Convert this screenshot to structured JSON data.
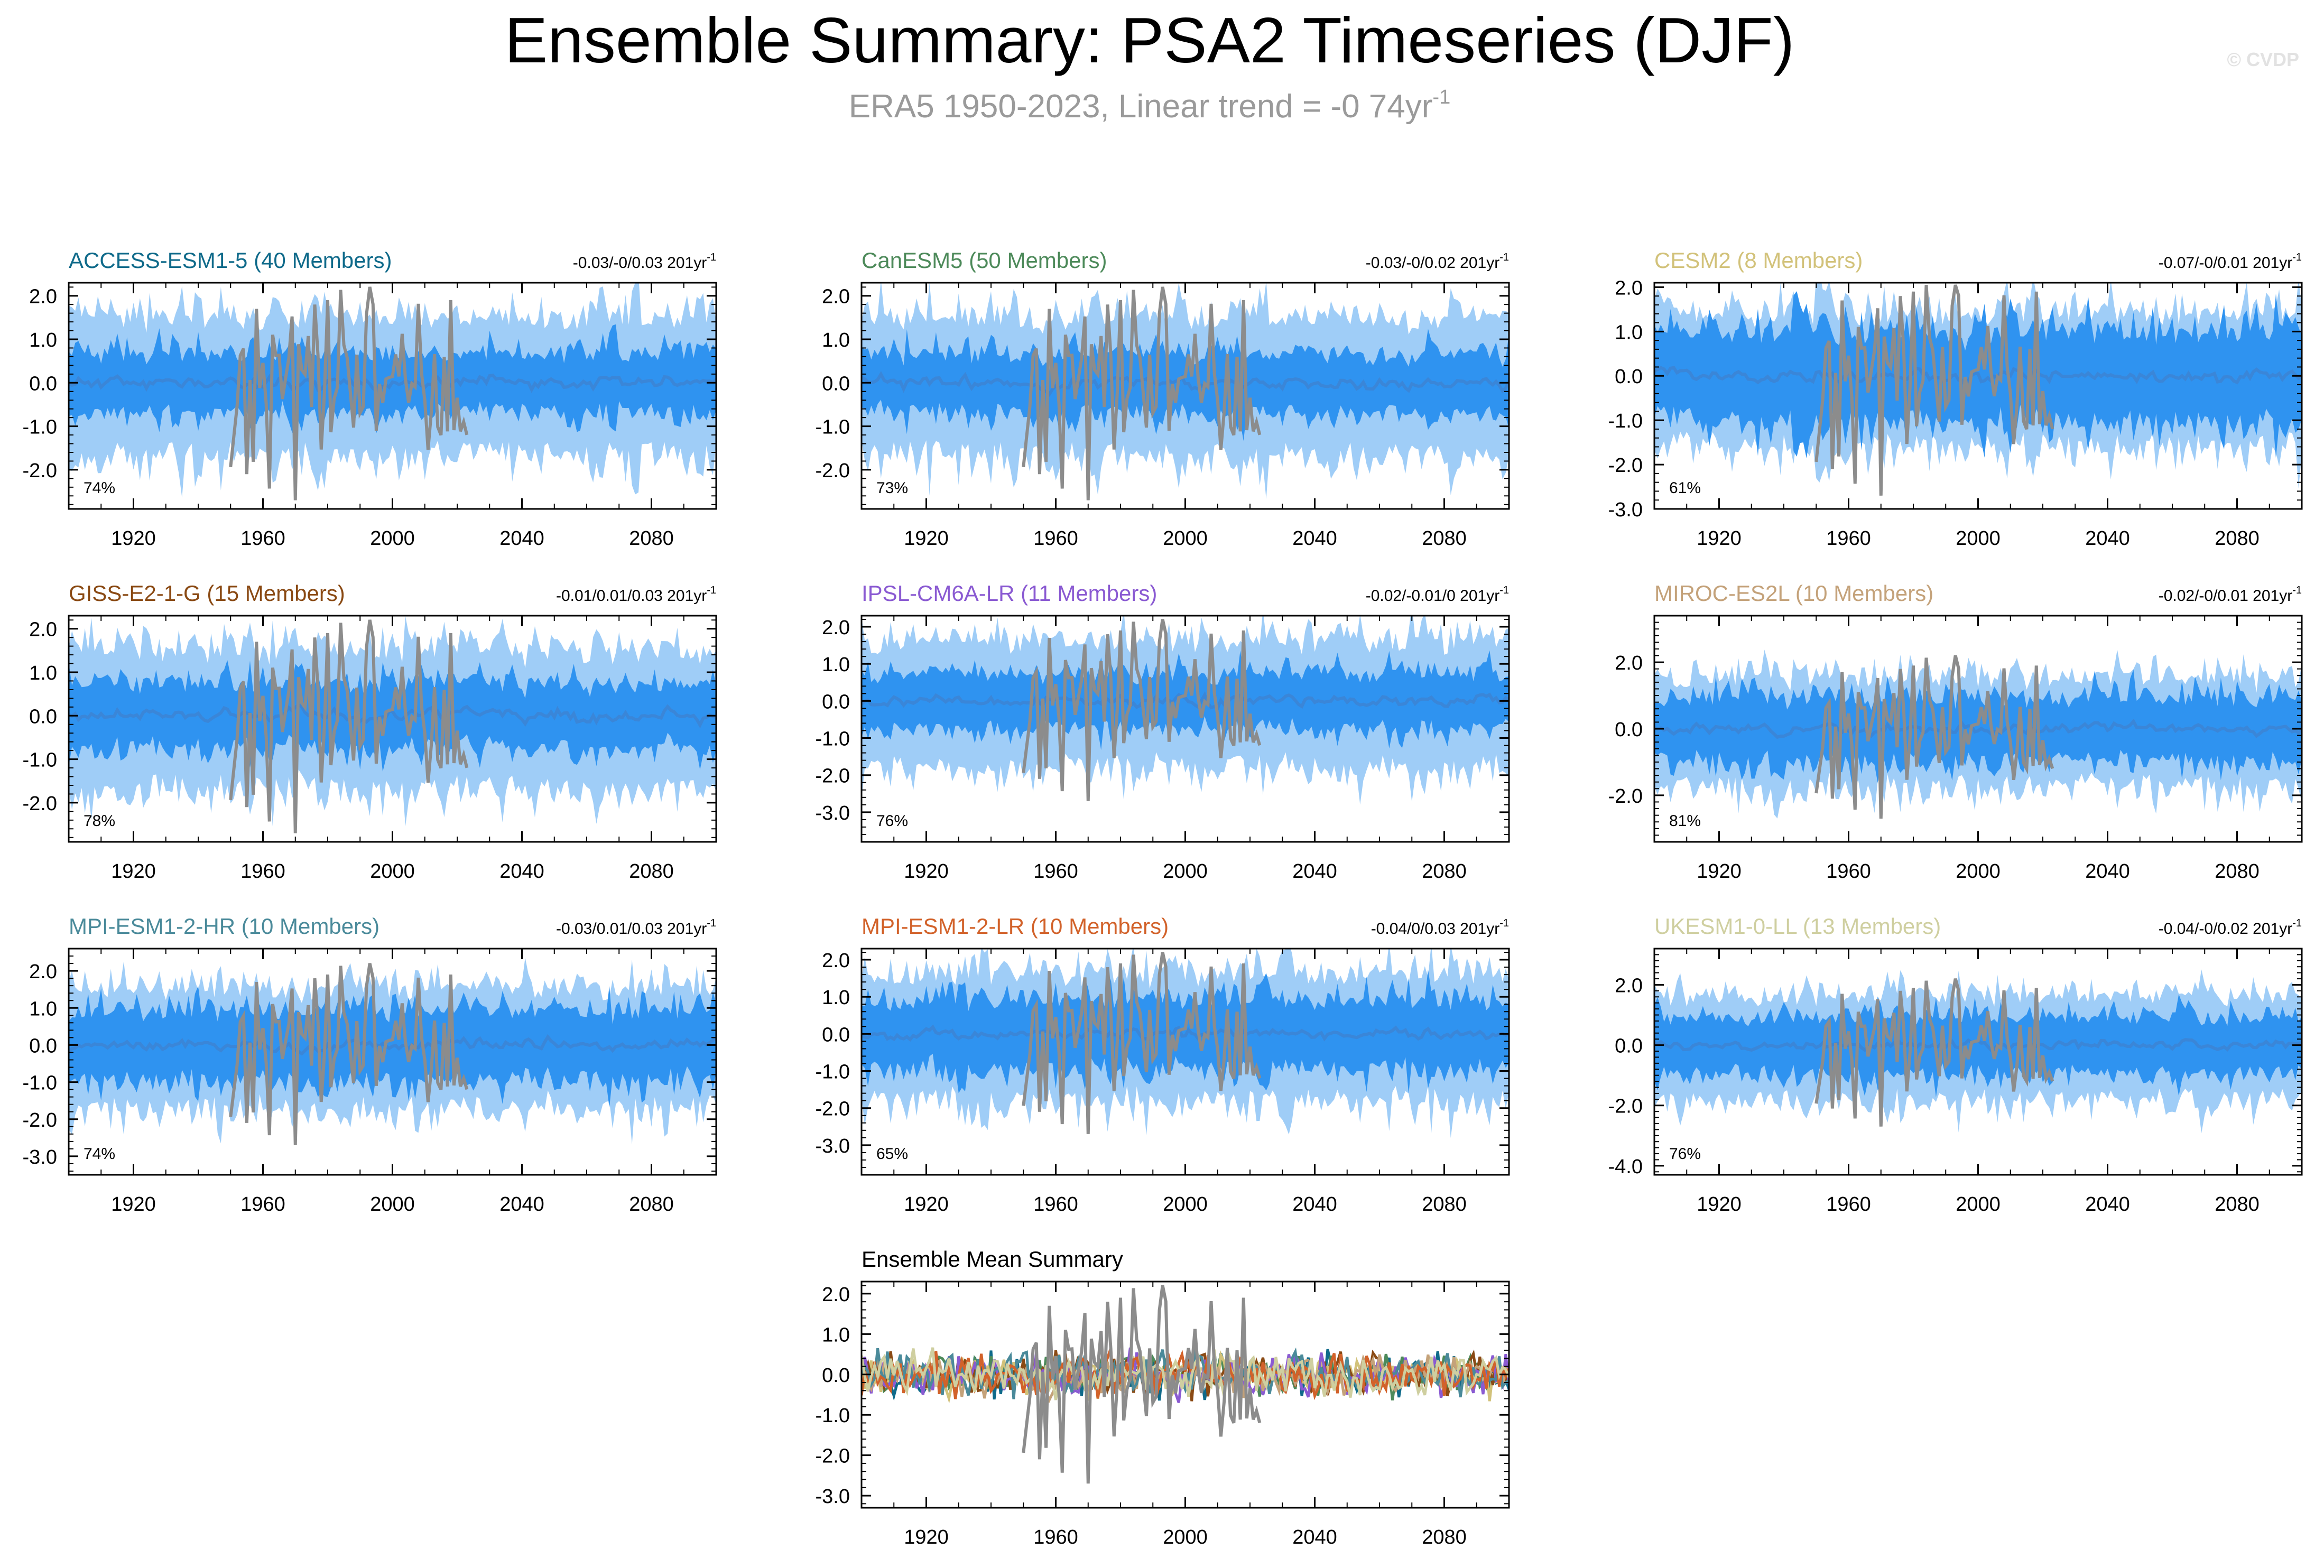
{
  "title": "Ensemble Summary: PSA2 Timeseries (DJF)",
  "subtitle": {
    "text": "ERA5 1950-2023, Linear trend = -0 74yr",
    "sup": "-1"
  },
  "watermark": "© CVDP",
  "colors": {
    "band_outer": "#9fcdf7",
    "band_inner": "#2f93f0",
    "ens_mean_line": "#3a86d8",
    "obs_line": "#8c8c8c",
    "axis": "#000000"
  },
  "chart_data": [
    {
      "type": "area",
      "id": "access",
      "title": "ACCESS-ESM1-5 (40 Members)",
      "title_color": "#0f6a8a",
      "trend": "-0.03/-0/0.03 201yr",
      "trend_sup": "-1",
      "percent": "74%",
      "ylim": [
        -2.9,
        2.3
      ],
      "yticks": [
        2.0,
        1.0,
        0.0,
        -1.0,
        -2.0
      ],
      "ytick_labels": [
        "2.0",
        "1.0",
        "0.0",
        "-1.0",
        "-2.0"
      ],
      "xticks": [
        1920,
        1960,
        2000,
        2040,
        2080
      ],
      "xtick_labels": [
        "1920",
        "1960",
        "2000",
        "2040",
        "2080"
      ],
      "xlim": [
        1900,
        2100
      ],
      "band_outer_amp": 1.5,
      "band_inner_amp": 0.75,
      "obs_amp": 1.0,
      "seed": 11
    },
    {
      "type": "area",
      "id": "canesm",
      "title": "CanESM5 (50 Members)",
      "title_color": "#4d8a5a",
      "trend": "-0.03/-0/0.02 201yr",
      "trend_sup": "-1",
      "percent": "73%",
      "ylim": [
        -2.9,
        2.3
      ],
      "yticks": [
        2.0,
        1.0,
        0.0,
        -1.0,
        -2.0
      ],
      "ytick_labels": [
        "2.0",
        "1.0",
        "0.0",
        "-1.0",
        "-2.0"
      ],
      "xticks": [
        1920,
        1960,
        2000,
        2040,
        2080
      ],
      "xtick_labels": [
        "1920",
        "1960",
        "2000",
        "2040",
        "2080"
      ],
      "xlim": [
        1900,
        2100
      ],
      "band_outer_amp": 1.5,
      "band_inner_amp": 0.75,
      "obs_amp": 1.0,
      "seed": 23
    },
    {
      "type": "area",
      "id": "cesm2",
      "title": "CESM2 (8 Members)",
      "title_color": "#d2c27a",
      "trend": "-0.07/-0/0.01 201yr",
      "trend_sup": "-1",
      "percent": "61%",
      "ylim": [
        -3.0,
        2.1
      ],
      "yticks": [
        2.0,
        1.0,
        0.0,
        -1.0,
        -2.0,
        -3.0
      ],
      "ytick_labels": [
        "2.0",
        "1.0",
        "0.0",
        "-1.0",
        "-2.0",
        "-3.0"
      ],
      "xticks": [
        1920,
        1960,
        2000,
        2040,
        2080
      ],
      "xtick_labels": [
        "1920",
        "1960",
        "2000",
        "2040",
        "2080"
      ],
      "xlim": [
        1900,
        2100
      ],
      "band_outer_amp": 1.4,
      "band_inner_amp": 1.1,
      "obs_amp": 1.0,
      "seed": 37
    },
    {
      "type": "area",
      "id": "giss",
      "title": "GISS-E2-1-G (15 Members)",
      "title_color": "#8a4a14",
      "trend": "-0.01/0.01/0.03 201yr",
      "trend_sup": "-1",
      "percent": "78%",
      "ylim": [
        -2.9,
        2.3
      ],
      "yticks": [
        2.0,
        1.0,
        0.0,
        -1.0,
        -2.0
      ],
      "ytick_labels": [
        "2.0",
        "1.0",
        "0.0",
        "-1.0",
        "-2.0"
      ],
      "xticks": [
        1920,
        1960,
        2000,
        2040,
        2080
      ],
      "xtick_labels": [
        "1920",
        "1960",
        "2000",
        "2040",
        "2080"
      ],
      "xlim": [
        1900,
        2100
      ],
      "band_outer_amp": 1.5,
      "band_inner_amp": 0.8,
      "obs_amp": 1.0,
      "seed": 41
    },
    {
      "type": "area",
      "id": "ipsl",
      "title": "IPSL-CM6A-LR (11 Members)",
      "title_color": "#8a5ad2",
      "trend": "-0.02/-0.01/0 201yr",
      "trend_sup": "-1",
      "percent": "76%",
      "ylim": [
        -3.8,
        2.3
      ],
      "yticks": [
        2.0,
        1.0,
        0.0,
        -1.0,
        -2.0,
        -3.0
      ],
      "ytick_labels": [
        "2.0",
        "1.0",
        "0.0",
        "-1.0",
        "-2.0",
        "-3.0"
      ],
      "xticks": [
        1920,
        1960,
        2000,
        2040,
        2080
      ],
      "xtick_labels": [
        "1920",
        "1960",
        "2000",
        "2040",
        "2080"
      ],
      "xlim": [
        1900,
        2100
      ],
      "band_outer_amp": 1.6,
      "band_inner_amp": 0.8,
      "obs_amp": 1.0,
      "seed": 53
    },
    {
      "type": "area",
      "id": "miroc",
      "title": "MIROC-ES2L (10 Members)",
      "title_color": "#c4a27a",
      "trend": "-0.02/-0/0.01 201yr",
      "trend_sup": "-1",
      "percent": "81%",
      "ylim": [
        -3.4,
        3.4
      ],
      "yticks": [
        2.0,
        0.0,
        -2.0
      ],
      "ytick_labels": [
        "2.0",
        "0.0",
        "-2.0"
      ],
      "xticks": [
        1920,
        1960,
        2000,
        2040,
        2080
      ],
      "xtick_labels": [
        "1920",
        "1960",
        "2000",
        "2040",
        "2080"
      ],
      "xlim": [
        1900,
        2100
      ],
      "band_outer_amp": 1.5,
      "band_inner_amp": 1.0,
      "obs_amp": 1.0,
      "seed": 67
    },
    {
      "type": "area",
      "id": "mpihr",
      "title": "MPI-ESM1-2-HR (10 Members)",
      "title_color": "#4a8a9a",
      "trend": "-0.03/0.01/0.03 201yr",
      "trend_sup": "-1",
      "percent": "74%",
      "ylim": [
        -3.5,
        2.6
      ],
      "yticks": [
        2.0,
        1.0,
        0.0,
        -1.0,
        -2.0,
        -3.0
      ],
      "ytick_labels": [
        "2.0",
        "1.0",
        "0.0",
        "-1.0",
        "-2.0",
        "-3.0"
      ],
      "xticks": [
        1920,
        1960,
        2000,
        2040,
        2080
      ],
      "xtick_labels": [
        "1920",
        "1960",
        "2000",
        "2040",
        "2080"
      ],
      "xlim": [
        1900,
        2100
      ],
      "band_outer_amp": 1.5,
      "band_inner_amp": 1.0,
      "obs_amp": 1.0,
      "seed": 71
    },
    {
      "type": "area",
      "id": "mpilr",
      "title": "MPI-ESM1-2-LR (10 Members)",
      "title_color": "#d2622a",
      "trend": "-0.04/0/0.03 201yr",
      "trend_sup": "-1",
      "percent": "65%",
      "ylim": [
        -3.8,
        2.3
      ],
      "yticks": [
        2.0,
        1.0,
        0.0,
        -1.0,
        -2.0,
        -3.0
      ],
      "ytick_labels": [
        "2.0",
        "1.0",
        "0.0",
        "-1.0",
        "-2.0",
        "-3.0"
      ],
      "xticks": [
        1920,
        1960,
        2000,
        2040,
        2080
      ],
      "xtick_labels": [
        "1920",
        "1960",
        "2000",
        "2040",
        "2080"
      ],
      "xlim": [
        1900,
        2100
      ],
      "band_outer_amp": 1.6,
      "band_inner_amp": 1.0,
      "obs_amp": 1.0,
      "seed": 83
    },
    {
      "type": "area",
      "id": "ukesm",
      "title": "UKESM1-0-LL (13 Members)",
      "title_color": "#cfcfa0",
      "trend": "-0.04/-0/0.02 201yr",
      "trend_sup": "-1",
      "percent": "76%",
      "ylim": [
        -4.3,
        3.2
      ],
      "yticks": [
        2.0,
        0.0,
        -2.0,
        -4.0
      ],
      "ytick_labels": [
        "2.0",
        "0.0",
        "-2.0",
        "-4.0"
      ],
      "xticks": [
        1920,
        1960,
        2000,
        2040,
        2080
      ],
      "xtick_labels": [
        "1920",
        "1960",
        "2000",
        "2040",
        "2080"
      ],
      "xlim": [
        1900,
        2100
      ],
      "band_outer_amp": 1.6,
      "band_inner_amp": 1.0,
      "obs_amp": 1.0,
      "seed": 97
    },
    {
      "type": "line",
      "id": "summary",
      "title": "Ensemble Mean Summary",
      "title_color": "#000000",
      "ylim": [
        -3.3,
        2.3
      ],
      "yticks": [
        2.0,
        1.0,
        0.0,
        -1.0,
        -2.0,
        -3.0
      ],
      "ytick_labels": [
        "2.0",
        "1.0",
        "0.0",
        "-1.0",
        "-2.0",
        "-3.0"
      ],
      "xticks": [
        1920,
        1960,
        2000,
        2040,
        2080
      ],
      "xtick_labels": [
        "1920",
        "1960",
        "2000",
        "2040",
        "2080"
      ],
      "xlim": [
        1900,
        2100
      ],
      "series_colors": [
        "#0f6a8a",
        "#4d8a5a",
        "#d2c27a",
        "#8a4a14",
        "#8a5ad2",
        "#c4a27a",
        "#4a8a9a",
        "#d2622a",
        "#cfcfa0"
      ],
      "obs_amp": 1.0,
      "seed": 5
    }
  ]
}
